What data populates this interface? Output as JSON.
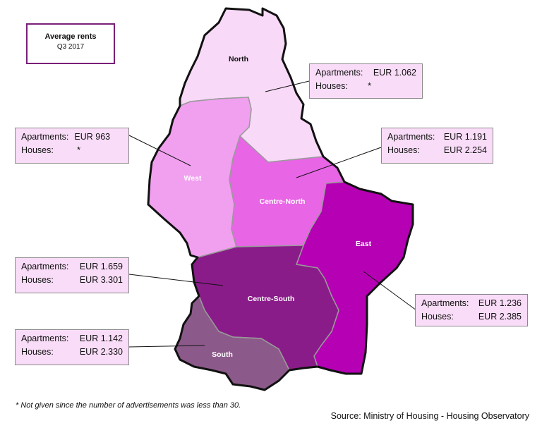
{
  "title": "Average rents",
  "subtitle": "Q3 2017",
  "colors": {
    "north": "#f8d9f7",
    "west": "#f0a0ef",
    "centre_north": "#e865e6",
    "east": "#b500b3",
    "centre_south": "#8a1c89",
    "south": "#8c5a8a",
    "border": "#111111",
    "inner_border": "#9a9a9a"
  },
  "regions": {
    "north": {
      "name": "North",
      "apartments_label": "Apartments:",
      "apartments": "EUR 1.062",
      "houses_label": "Houses:",
      "houses": "*"
    },
    "west": {
      "name": "West",
      "apartments_label": "Apartments:",
      "apartments": "EUR 963",
      "houses_label": "Houses:",
      "houses": "*"
    },
    "centre_north": {
      "name": "Centre-North",
      "apartments_label": "Apartments:",
      "apartments": "EUR 1.191",
      "houses_label": "Houses:",
      "houses": "EUR 2.254"
    },
    "east": {
      "name": "East",
      "apartments_label": "Apartments:",
      "apartments": "EUR 1.236",
      "houses_label": "Houses:",
      "houses": "EUR 2.385"
    },
    "centre_south": {
      "name": "Centre-South",
      "apartments_label": "Apartments:",
      "apartments": "EUR 1.659",
      "houses_label": "Houses:",
      "houses": "EUR 3.301"
    },
    "south": {
      "name": "South",
      "apartments_label": "Apartments:",
      "apartments": "EUR 1.142",
      "houses_label": "Houses:",
      "houses": "EUR 2.330"
    }
  },
  "footnote": "* Not given since the number of advertisements was less than 30.",
  "source": "Source: Ministry of Housing - Housing Observatory"
}
